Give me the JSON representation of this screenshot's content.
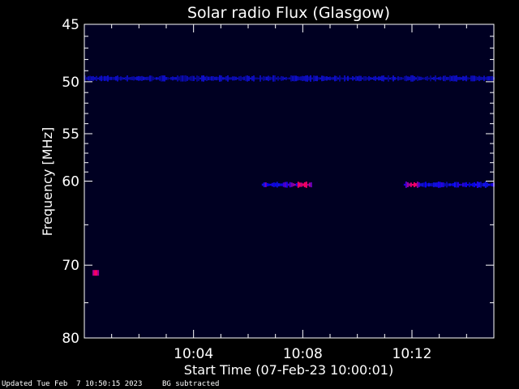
{
  "chart_data": {
    "type": "heatmap",
    "title": "Solar radio Flux (Glasgow)",
    "xlabel": "Start Time (07-Feb-23 10:00:01)",
    "ylabel": "Frequency [MHz]",
    "x_unit": "minutes after 10:00:01",
    "xlim": [
      0,
      15
    ],
    "ylim": [
      45,
      80
    ],
    "y_scale": "log",
    "y_inverted": true,
    "background_color": "#000022",
    "y_ticks": [
      {
        "value": 45,
        "label": "45"
      },
      {
        "value": 50,
        "label": "50"
      },
      {
        "value": 55,
        "label": "55"
      },
      {
        "value": 60,
        "label": "60"
      },
      {
        "value": 70,
        "label": "70"
      },
      {
        "value": 80,
        "label": "80"
      }
    ],
    "x_ticks": [
      {
        "value": 4,
        "label": "10:04"
      },
      {
        "value": 8,
        "label": "10:08"
      },
      {
        "value": 12,
        "label": "10:12"
      }
    ],
    "features": [
      {
        "t_start": 0,
        "t_end": 15,
        "freq": 49.7,
        "intensity": 0.35
      },
      {
        "t_start": 6.5,
        "t_end": 8.3,
        "freq": 60.4,
        "intensity": 0.8,
        "peak_t": 8.0
      },
      {
        "t_start": 11.7,
        "t_end": 15,
        "freq": 60.4,
        "intensity": 0.6,
        "peak_t": 12.0
      },
      {
        "t_start": 0.3,
        "t_end": 0.5,
        "freq": 71.0,
        "intensity": 0.9,
        "peak_t": 0.4
      }
    ]
  },
  "footer": {
    "updated": "Updated Tue Feb  7 10:50:15 2023",
    "note": "BG subtracted"
  }
}
